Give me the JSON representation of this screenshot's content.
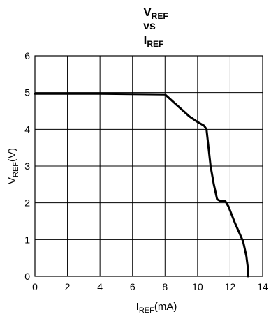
{
  "chart_data": {
    "type": "line",
    "title": {
      "line1_main": "V",
      "line1_sub": "REF",
      "line2": "vs",
      "line3_main": "I",
      "line3_sub": "REF"
    },
    "xlabel": {
      "main": "I",
      "sub": "REF",
      "unit": "(mA)"
    },
    "ylabel": {
      "main": "V",
      "sub": "REF",
      "unit": "(V)"
    },
    "xlim": [
      0,
      14
    ],
    "ylim": [
      0,
      6
    ],
    "x_ticks": [
      "0",
      "2",
      "4",
      "6",
      "8",
      "10",
      "12",
      "14"
    ],
    "y_ticks": [
      "0",
      "1",
      "2",
      "3",
      "4",
      "5",
      "6"
    ],
    "grid": true,
    "series": [
      {
        "x": [
          0,
          2,
          4,
          6,
          8,
          8.5,
          9.0,
          9.5,
          10.0,
          10.4,
          10.55,
          10.6,
          10.8,
          11.0,
          11.2,
          11.4,
          11.7,
          11.9,
          12.3,
          12.8,
          13.0,
          13.1,
          13.1
        ],
        "y": [
          4.97,
          4.97,
          4.97,
          4.96,
          4.95,
          4.75,
          4.55,
          4.35,
          4.2,
          4.1,
          4.0,
          3.8,
          3.0,
          2.5,
          2.1,
          2.05,
          2.05,
          1.9,
          1.45,
          0.95,
          0.55,
          0.2,
          0.0
        ]
      }
    ],
    "line_color": "#000000"
  }
}
